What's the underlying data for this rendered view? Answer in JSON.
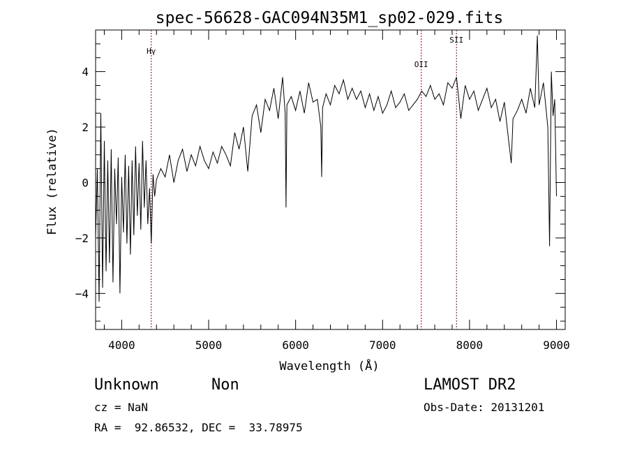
{
  "chart_data": {
    "type": "line",
    "title": "spec-56628-GAC094N35M1_sp02-029.fits",
    "xlabel": "Wavelength (Å)",
    "ylabel": "Flux (relative)",
    "xlim": [
      3700,
      9100
    ],
    "ylim": [
      -5.3,
      5.5
    ],
    "xticks": [
      4000,
      5000,
      6000,
      7000,
      8000,
      9000
    ],
    "yticks": [
      -4,
      -2,
      0,
      2,
      4
    ],
    "line_color": "#000000",
    "marker_color": "#8b0000",
    "grid": false,
    "lines": [
      {
        "label": "Hγ",
        "x": 4340
      },
      {
        "label": "OII",
        "x": 7445
      },
      {
        "label": "SII",
        "x": 7850
      }
    ],
    "series": [
      {
        "x": [
          3700,
          3720,
          3740,
          3760,
          3780,
          3800,
          3820,
          3840,
          3860,
          3880,
          3900,
          3920,
          3940,
          3960,
          3980,
          4000,
          4020,
          4040,
          4060,
          4080,
          4100,
          4120,
          4140,
          4160,
          4180,
          4200,
          4220,
          4240,
          4260,
          4280,
          4300,
          4320,
          4340,
          4360,
          4380,
          4400,
          4450,
          4500,
          4550,
          4600,
          4650,
          4700,
          4750,
          4800,
          4850,
          4900,
          4950,
          5000,
          5050,
          5100,
          5150,
          5200,
          5250,
          5300,
          5350,
          5400,
          5450,
          5500,
          5550,
          5600,
          5650,
          5700,
          5750,
          5800,
          5850,
          5880,
          5890,
          5900,
          5950,
          6000,
          6050,
          6100,
          6150,
          6200,
          6250,
          6290,
          6300,
          6310,
          6350,
          6400,
          6450,
          6500,
          6550,
          6600,
          6650,
          6700,
          6750,
          6800,
          6850,
          6900,
          6950,
          7000,
          7050,
          7100,
          7150,
          7200,
          7250,
          7300,
          7350,
          7400,
          7450,
          7500,
          7550,
          7600,
          7650,
          7700,
          7750,
          7800,
          7850,
          7900,
          7950,
          8000,
          8050,
          8100,
          8150,
          8200,
          8250,
          8300,
          8350,
          8400,
          8450,
          8480,
          8500,
          8550,
          8600,
          8650,
          8700,
          8750,
          8780,
          8800,
          8850,
          8900,
          8920,
          8940,
          8960,
          8980,
          9000
        ],
        "y": [
          -2.0,
          0.5,
          -4.3,
          2.5,
          -3.8,
          1.5,
          -3.2,
          0.8,
          -2.9,
          1.2,
          -3.6,
          0.5,
          -1.5,
          0.9,
          -4.0,
          0.2,
          -1.8,
          1.0,
          -2.2,
          0.6,
          -2.6,
          0.8,
          -1.9,
          1.3,
          -1.2,
          0.7,
          -1.7,
          1.5,
          -0.9,
          0.8,
          -1.5,
          -0.2,
          -2.2,
          0.3,
          -0.5,
          0.1,
          0.5,
          0.2,
          1.0,
          0.0,
          0.8,
          1.2,
          0.4,
          1.0,
          0.6,
          1.3,
          0.8,
          0.5,
          1.1,
          0.7,
          1.3,
          1.0,
          0.6,
          1.8,
          1.2,
          2.0,
          0.4,
          2.4,
          2.8,
          1.8,
          3.0,
          2.6,
          3.4,
          2.3,
          3.8,
          2.5,
          -0.9,
          2.8,
          3.1,
          2.6,
          3.3,
          2.5,
          3.6,
          2.9,
          3.0,
          2.0,
          0.2,
          2.7,
          3.2,
          2.8,
          3.5,
          3.2,
          3.7,
          3.0,
          3.4,
          3.0,
          3.3,
          2.7,
          3.2,
          2.6,
          3.1,
          2.5,
          2.8,
          3.3,
          2.7,
          2.9,
          3.2,
          2.6,
          2.8,
          3.0,
          3.3,
          3.1,
          3.5,
          3.0,
          3.2,
          2.8,
          3.6,
          3.4,
          3.8,
          2.3,
          3.5,
          3.0,
          3.3,
          2.6,
          3.0,
          3.4,
          2.7,
          3.0,
          2.2,
          2.9,
          1.5,
          0.7,
          2.3,
          2.6,
          3.0,
          2.5,
          3.4,
          2.7,
          5.3,
          2.8,
          3.6,
          2.0,
          -2.3,
          4.0,
          2.4,
          3.0,
          -0.5
        ]
      }
    ]
  },
  "info": {
    "object_class": "Unknown",
    "subclass": "Non",
    "survey": "LAMOST DR2",
    "cz": "cz = NaN",
    "obs_date": "Obs-Date: 20131201",
    "coords": "RA =  92.86532, DEC =  33.78975"
  }
}
